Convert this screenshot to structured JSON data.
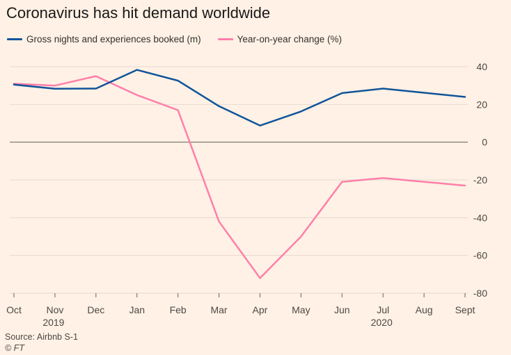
{
  "title": "Coronavirus has hit demand worldwide",
  "source": "Source: Airbnb S-1",
  "credit": "© FT",
  "chart_data": {
    "type": "line",
    "title": "Coronavirus has hit demand worldwide",
    "categories": [
      "Oct",
      "Nov",
      "Dec",
      "Jan",
      "Feb",
      "Mar",
      "Apr",
      "May",
      "Jun",
      "Jul",
      "Aug",
      "Sept"
    ],
    "year_labels": [
      {
        "label": "2019",
        "at": "Nov"
      },
      {
        "label": "2020",
        "at": "Jul"
      }
    ],
    "ylim": [
      -80,
      40
    ],
    "yticks": [
      40,
      20,
      0,
      -20,
      -40,
      -60,
      -80
    ],
    "y_axis_position": "right",
    "grid": true,
    "legend_position": "top-left",
    "series": [
      {
        "name": "Gross nights and experiences booked (m)",
        "color": "#0f5499",
        "values": [
          30.5,
          28.3,
          28.4,
          38.3,
          32.6,
          19.1,
          8.8,
          16.3,
          26.0,
          28.4,
          26.2,
          24.0
        ]
      },
      {
        "name": "Year-on-year change (%)",
        "color": "#ff7faa",
        "values": [
          31.0,
          30.0,
          35.0,
          25.0,
          17.0,
          -42.0,
          -72.0,
          -50.0,
          -21.0,
          -19.0,
          -21.0,
          -23.0
        ]
      }
    ]
  }
}
